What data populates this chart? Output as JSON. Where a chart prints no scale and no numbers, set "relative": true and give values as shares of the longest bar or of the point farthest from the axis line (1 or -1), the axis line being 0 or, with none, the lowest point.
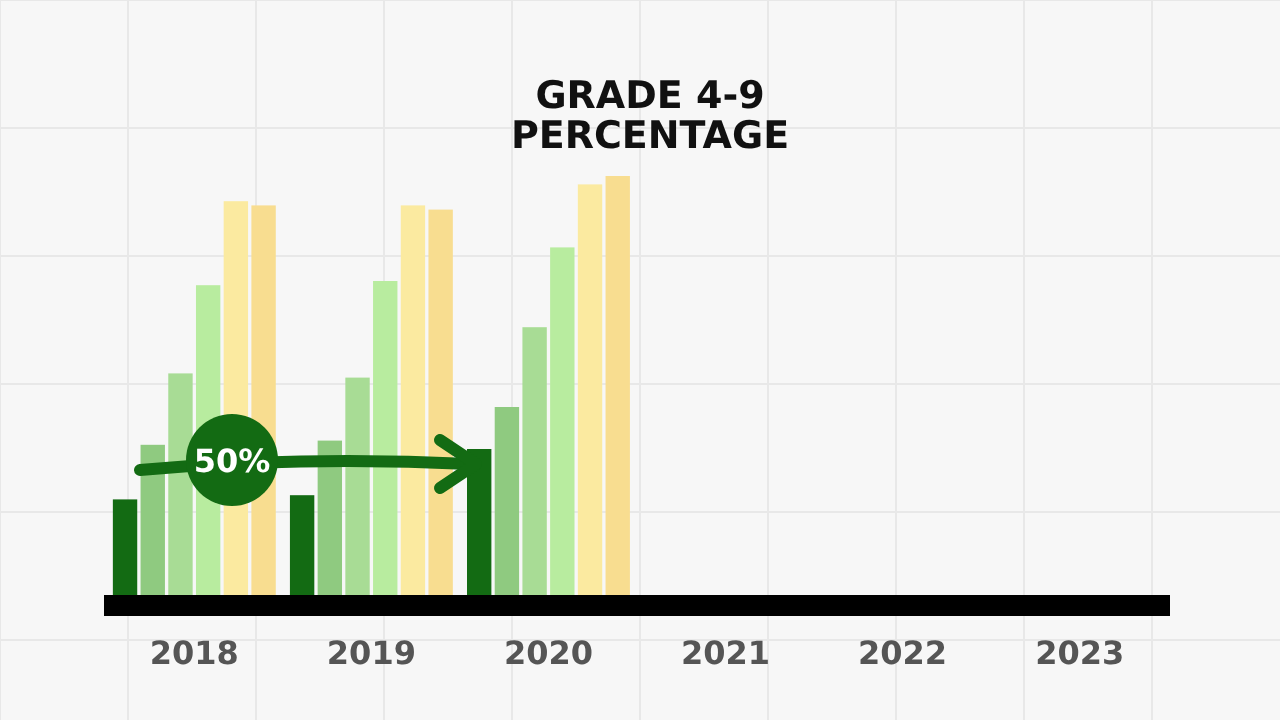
{
  "chart_data": {
    "type": "bar",
    "title": "GRADE 4-9\nPERCENTAGE",
    "categories": [
      "2018",
      "2019",
      "2020",
      "2021",
      "2022",
      "2023"
    ],
    "relative": true,
    "series": [
      {
        "color": "#136b13",
        "values": [
          0.23,
          0.24,
          0.35,
          null,
          null,
          null
        ]
      },
      {
        "color": "#8fca80",
        "values": [
          0.36,
          0.37,
          0.45,
          null,
          null,
          null
        ]
      },
      {
        "color": "#a8dc95",
        "values": [
          0.53,
          0.52,
          0.64,
          null,
          null,
          null
        ]
      },
      {
        "color": "#b8ec9f",
        "values": [
          0.74,
          0.75,
          0.83,
          null,
          null,
          null
        ]
      },
      {
        "color": "#fbeaa0",
        "values": [
          0.94,
          0.93,
          0.98,
          null,
          null,
          null
        ]
      },
      {
        "color": "#f8dd90",
        "values": [
          0.93,
          0.92,
          1,
          null,
          null,
          null
        ]
      }
    ],
    "annotations": [
      "50%"
    ]
  }
}
